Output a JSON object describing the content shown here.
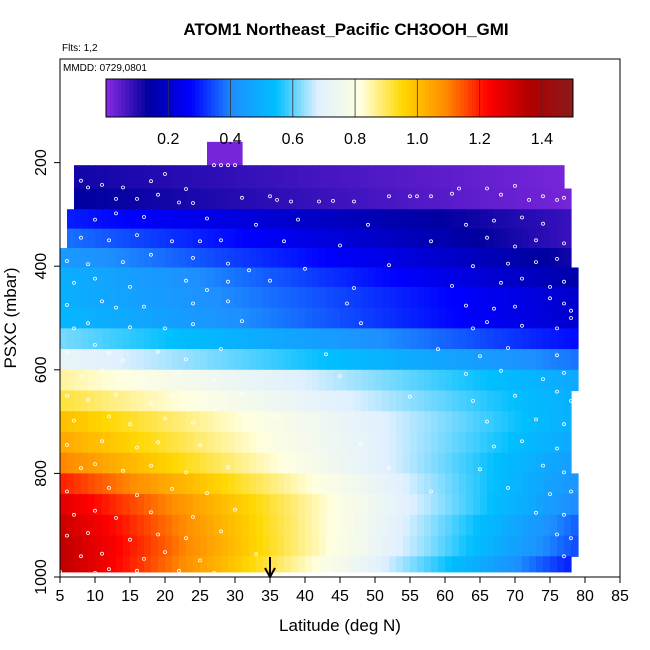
{
  "chart_data": {
    "type": "heatmap",
    "title": "ATOM1 Northeast_Pacific CH3OOH_GMI",
    "subtitle_flights": "Flts: 1,2",
    "subtitle_dates": "MMDD: 0729,0801",
    "xlabel": "Latitude (deg N)",
    "ylabel": "PSXC (mbar)",
    "xlim": [
      5,
      85
    ],
    "ylim": [
      1000,
      0
    ],
    "x_ticks": [
      5,
      10,
      15,
      20,
      25,
      30,
      35,
      40,
      45,
      50,
      55,
      60,
      65,
      70,
      75,
      80,
      85
    ],
    "y_ticks": [
      200,
      400,
      600,
      800,
      1000
    ],
    "colorbar": {
      "range": [
        0,
        1.5
      ],
      "ticks": [
        0.2,
        0.4,
        0.6,
        0.8,
        1.0,
        1.2,
        1.4
      ],
      "tick_labels": [
        "0.2",
        "0.4",
        "0.6",
        "0.8",
        "1.0",
        "1.2",
        "1.4"
      ],
      "palette": [
        "#8a2be2",
        "#0000a0",
        "#0000ff",
        "#1e90ff",
        "#00bfff",
        "#e0f0ff",
        "#ffffe0",
        "#ffd700",
        "#ff8c00",
        "#ff0000",
        "#b00000",
        "#8b1a1a"
      ]
    },
    "marker": {
      "x": 35,
      "label": ""
    },
    "layers": [
      {
        "p": 180,
        "x_start": 26,
        "x_end": 31,
        "v_start": 0.02,
        "v_end": 0.02
      },
      {
        "p": 230,
        "x_start": 7,
        "x_end": 77,
        "v_start": 0.12,
        "v_end": 0.02
      },
      {
        "p": 270,
        "x_start": 7,
        "x_end": 78,
        "v_start": 0.14,
        "v_end": 0.02
      },
      {
        "p": 310,
        "x_start": 6,
        "x_end": 78,
        "v_start": 0.3,
        "v_end": 0.08
      },
      {
        "p": 345,
        "x_start": 6,
        "x_end": 78,
        "v_start": 0.38,
        "v_end": 0.08
      },
      {
        "p": 385,
        "x_start": 5,
        "x_end": 78,
        "v_start": 0.44,
        "v_end": 0.12
      },
      {
        "p": 420,
        "x_start": 5,
        "x_end": 79,
        "v_start": 0.5,
        "v_end": 0.15
      },
      {
        "p": 460,
        "x_start": 5,
        "x_end": 79,
        "v_start": 0.5,
        "v_end": 0.2
      },
      {
        "p": 500,
        "x_start": 5,
        "x_end": 79,
        "v_start": 0.52,
        "v_end": 0.2
      },
      {
        "p": 540,
        "x_start": 5,
        "x_end": 79,
        "v_start": 0.62,
        "v_end": 0.28
      },
      {
        "p": 580,
        "x_start": 5,
        "x_end": 79,
        "v_start": 0.72,
        "v_end": 0.38
      },
      {
        "p": 620,
        "x_start": 5,
        "x_end": 79,
        "v_start": 0.86,
        "v_end": 0.48
      },
      {
        "p": 660,
        "x_start": 5,
        "x_end": 78,
        "v_start": 0.92,
        "v_end": 0.5
      },
      {
        "p": 700,
        "x_start": 5,
        "x_end": 78,
        "v_start": 1.0,
        "v_end": 0.5
      },
      {
        "p": 740,
        "x_start": 5,
        "x_end": 78,
        "v_start": 1.04,
        "v_end": 0.48
      },
      {
        "p": 780,
        "x_start": 5,
        "x_end": 78,
        "v_start": 1.1,
        "v_end": 0.45
      },
      {
        "p": 820,
        "x_start": 5,
        "x_end": 79,
        "v_start": 1.2,
        "v_end": 0.42
      },
      {
        "p": 860,
        "x_start": 5,
        "x_end": 79,
        "v_start": 1.28,
        "v_end": 0.4
      },
      {
        "p": 900,
        "x_start": 5,
        "x_end": 79,
        "v_start": 1.32,
        "v_end": 0.36
      },
      {
        "p": 940,
        "x_start": 5,
        "x_end": 79,
        "v_start": 1.34,
        "v_end": 0.34
      },
      {
        "p": 980,
        "x_start": 5,
        "x_end": 78,
        "v_start": 1.34,
        "v_end": 0.3
      }
    ],
    "points": [
      [
        8,
        235
      ],
      [
        9,
        248
      ],
      [
        11,
        243
      ],
      [
        14,
        248
      ],
      [
        18,
        236
      ],
      [
        20,
        222
      ],
      [
        23,
        251
      ],
      [
        27,
        205
      ],
      [
        28,
        205
      ],
      [
        29,
        205
      ],
      [
        30,
        205
      ],
      [
        35,
        265
      ],
      [
        38,
        275
      ],
      [
        42,
        275
      ],
      [
        47,
        275
      ],
      [
        52,
        265
      ],
      [
        55,
        265
      ],
      [
        58,
        265
      ],
      [
        62,
        250
      ],
      [
        66,
        250
      ],
      [
        70,
        245
      ],
      [
        74,
        265
      ],
      [
        76,
        272
      ],
      [
        77,
        268
      ],
      [
        13,
        270
      ],
      [
        16,
        270
      ],
      [
        19,
        262
      ],
      [
        22,
        277
      ],
      [
        24,
        278
      ],
      [
        31,
        268
      ],
      [
        36,
        272
      ],
      [
        44,
        274
      ],
      [
        56,
        265
      ],
      [
        61,
        260
      ],
      [
        68,
        262
      ],
      [
        72,
        272
      ],
      [
        10,
        310
      ],
      [
        13,
        298
      ],
      [
        17,
        305
      ],
      [
        26,
        308
      ],
      [
        33,
        320
      ],
      [
        39,
        310
      ],
      [
        49,
        320
      ],
      [
        63,
        320
      ],
      [
        67,
        312
      ],
      [
        71,
        306
      ],
      [
        74,
        318
      ],
      [
        8,
        345
      ],
      [
        12,
        350
      ],
      [
        16,
        340
      ],
      [
        21,
        352
      ],
      [
        25,
        352
      ],
      [
        28,
        350
      ],
      [
        37,
        352
      ],
      [
        45,
        360
      ],
      [
        58,
        352
      ],
      [
        66,
        345
      ],
      [
        70,
        362
      ],
      [
        73,
        350
      ],
      [
        77,
        356
      ],
      [
        6,
        390
      ],
      [
        9,
        396
      ],
      [
        14,
        392
      ],
      [
        18,
        378
      ],
      [
        24,
        384
      ],
      [
        29,
        395
      ],
      [
        32,
        408
      ],
      [
        40,
        405
      ],
      [
        52,
        398
      ],
      [
        64,
        400
      ],
      [
        69,
        395
      ],
      [
        73,
        392
      ],
      [
        76,
        386
      ],
      [
        7,
        432
      ],
      [
        10,
        424
      ],
      [
        15,
        440
      ],
      [
        23,
        428
      ],
      [
        26,
        446
      ],
      [
        29,
        430
      ],
      [
        35,
        428
      ],
      [
        47,
        442
      ],
      [
        61,
        438
      ],
      [
        68,
        432
      ],
      [
        71,
        424
      ],
      [
        75,
        440
      ],
      [
        77,
        430
      ],
      [
        6,
        475
      ],
      [
        11,
        468
      ],
      [
        13,
        480
      ],
      [
        17,
        478
      ],
      [
        24,
        472
      ],
      [
        29,
        468
      ],
      [
        46,
        472
      ],
      [
        63,
        476
      ],
      [
        67,
        482
      ],
      [
        70,
        478
      ],
      [
        75,
        462
      ],
      [
        77,
        472
      ],
      [
        78,
        486
      ],
      [
        7,
        520
      ],
      [
        9,
        510
      ],
      [
        15,
        518
      ],
      [
        20,
        520
      ],
      [
        24,
        512
      ],
      [
        31,
        506
      ],
      [
        48,
        510
      ],
      [
        64,
        520
      ],
      [
        66,
        508
      ],
      [
        71,
        515
      ],
      [
        76,
        520
      ],
      [
        78,
        500
      ],
      [
        6,
        565
      ],
      [
        10,
        552
      ],
      [
        12,
        568
      ],
      [
        14,
        582
      ],
      [
        19,
        565
      ],
      [
        23,
        580
      ],
      [
        28,
        560
      ],
      [
        43,
        570
      ],
      [
        59,
        560
      ],
      [
        65,
        574
      ],
      [
        69,
        558
      ],
      [
        76,
        572
      ],
      [
        8,
        612
      ],
      [
        11,
        602
      ],
      [
        17,
        618
      ],
      [
        22,
        605
      ],
      [
        27,
        620
      ],
      [
        45,
        612
      ],
      [
        63,
        608
      ],
      [
        68,
        602
      ],
      [
        74,
        618
      ],
      [
        77,
        606
      ],
      [
        6,
        650
      ],
      [
        9,
        658
      ],
      [
        13,
        648
      ],
      [
        18,
        664
      ],
      [
        21,
        650
      ],
      [
        26,
        658
      ],
      [
        31,
        648
      ],
      [
        55,
        652
      ],
      [
        64,
        660
      ],
      [
        70,
        650
      ],
      [
        76,
        642
      ],
      [
        78,
        660
      ],
      [
        7,
        698
      ],
      [
        12,
        690
      ],
      [
        15,
        705
      ],
      [
        20,
        694
      ],
      [
        24,
        702
      ],
      [
        36,
        690
      ],
      [
        66,
        700
      ],
      [
        73,
        696
      ],
      [
        77,
        705
      ],
      [
        6,
        745
      ],
      [
        11,
        738
      ],
      [
        16,
        750
      ],
      [
        19,
        740
      ],
      [
        25,
        745
      ],
      [
        48,
        742
      ],
      [
        67,
        748
      ],
      [
        71,
        738
      ],
      [
        76,
        752
      ],
      [
        8,
        790
      ],
      [
        10,
        782
      ],
      [
        14,
        795
      ],
      [
        18,
        785
      ],
      [
        23,
        798
      ],
      [
        29,
        788
      ],
      [
        52,
        790
      ],
      [
        65,
        792
      ],
      [
        74,
        785
      ],
      [
        77,
        798
      ],
      [
        6,
        835
      ],
      [
        12,
        828
      ],
      [
        16,
        842
      ],
      [
        21,
        830
      ],
      [
        26,
        838
      ],
      [
        58,
        835
      ],
      [
        69,
        828
      ],
      [
        75,
        840
      ],
      [
        78,
        835
      ],
      [
        7,
        880
      ],
      [
        10,
        872
      ],
      [
        13,
        886
      ],
      [
        18,
        875
      ],
      [
        24,
        884
      ],
      [
        30,
        870
      ],
      [
        73,
        876
      ],
      [
        77,
        880
      ],
      [
        6,
        920
      ],
      [
        9,
        915
      ],
      [
        15,
        928
      ],
      [
        19,
        918
      ],
      [
        23,
        925
      ],
      [
        28,
        912
      ],
      [
        76,
        918
      ],
      [
        78,
        925
      ],
      [
        8,
        960
      ],
      [
        11,
        955
      ],
      [
        17,
        965
      ],
      [
        20,
        952
      ],
      [
        25,
        968
      ],
      [
        33,
        956
      ],
      [
        77,
        960
      ],
      [
        5,
        990
      ],
      [
        10,
        992
      ],
      [
        12,
        985
      ],
      [
        16,
        988
      ],
      [
        18,
        995
      ],
      [
        22,
        988
      ],
      [
        27,
        992
      ]
    ]
  }
}
